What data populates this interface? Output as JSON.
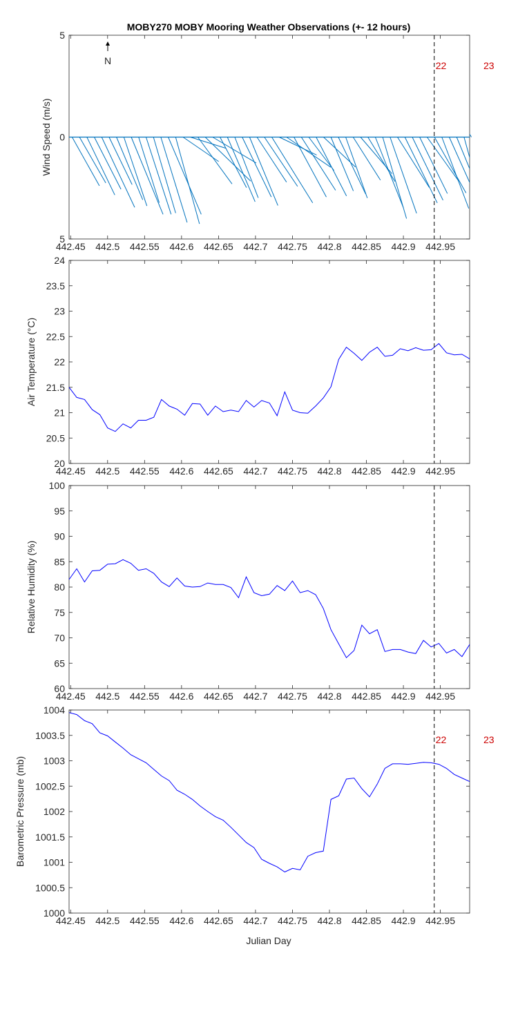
{
  "title": "MOBY270 MOBY Mooring Weather Observations (+- 12 hours)",
  "colors": {
    "line": "#0000ff",
    "stick": "#0072bd",
    "axis": "#262626",
    "day_label": "#cc0000",
    "marker": "#000000"
  },
  "north_arrow_label": "N",
  "xlabel": "Julian Day",
  "day_marker_x": 442.9417,
  "day_labels": [
    "22",
    "23"
  ],
  "chart_data": [
    {
      "type": "line",
      "panel": "wind",
      "ylabel": "Wind Speed (m/s)",
      "xlim": [
        442.4479,
        442.9896
      ],
      "ylim": [
        -5,
        5
      ],
      "yticks": [
        -5,
        0,
        5
      ],
      "ytick_labels": [
        "5",
        "0",
        "5"
      ],
      "xticks": [
        442.45,
        442.5,
        442.55,
        442.6,
        442.65,
        442.7,
        442.75,
        442.8,
        442.85,
        442.9,
        442.95
      ],
      "xtick_labels": [
        "442.45",
        "442.5",
        "442.55",
        "442.6",
        "442.65",
        "442.7",
        "442.75",
        "442.8",
        "442.85",
        "442.9",
        "442.95"
      ],
      "sticks_u": [
        0,
        0,
        0,
        0,
        0,
        0,
        0,
        0,
        0,
        0,
        0,
        0,
        0,
        0,
        0,
        0,
        0,
        0,
        0,
        0,
        0,
        0,
        0,
        0,
        0,
        0,
        0,
        0,
        0,
        0,
        0,
        0,
        0,
        0,
        0,
        0,
        0,
        0,
        0,
        0,
        0,
        0,
        0,
        0,
        0,
        0,
        0,
        0,
        0,
        0,
        0,
        0,
        0,
        0,
        0
      ],
      "sticks": [
        {
          "x": 442.452,
          "u": 1.34,
          "v": -2.39
        },
        {
          "x": 442.462,
          "u": 1.29,
          "v": -2.25
        },
        {
          "x": 442.472,
          "u": 1.37,
          "v": -2.84
        },
        {
          "x": 442.482,
          "u": 1.31,
          "v": -2.56
        },
        {
          "x": 442.492,
          "u": 1.62,
          "v": -3.45
        },
        {
          "x": 442.502,
          "u": 1.13,
          "v": -2.33
        },
        {
          "x": 442.512,
          "u": 1.29,
          "v": -3.08
        },
        {
          "x": 442.522,
          "u": 1.13,
          "v": -3.38
        },
        {
          "x": 442.532,
          "u": 1.56,
          "v": -3.79
        },
        {
          "x": 442.542,
          "u": 1.01,
          "v": -3.22
        },
        {
          "x": 442.552,
          "u": 1.23,
          "v": -3.79
        },
        {
          "x": 442.562,
          "u": 1.09,
          "v": -3.73
        },
        {
          "x": 442.572,
          "u": 1.29,
          "v": -4.19
        },
        {
          "x": 442.582,
          "u": 1.62,
          "v": -3.79
        },
        {
          "x": 442.592,
          "u": 1.17,
          "v": -4.26
        },
        {
          "x": 442.602,
          "u": 1.75,
          "v": -1.2
        },
        {
          "x": 442.612,
          "u": 1.75,
          "v": -0.55
        },
        {
          "x": 442.622,
          "u": 1.68,
          "v": -2.3
        },
        {
          "x": 442.632,
          "u": 2.23,
          "v": -2.16
        },
        {
          "x": 442.642,
          "u": 2.14,
          "v": -1.27
        },
        {
          "x": 442.652,
          "u": 1.3,
          "v": -2.48
        },
        {
          "x": 442.662,
          "u": 1.36,
          "v": -3.17
        },
        {
          "x": 442.672,
          "u": 1.15,
          "v": -2.98
        },
        {
          "x": 442.682,
          "u": 1.43,
          "v": -2.94
        },
        {
          "x": 442.692,
          "u": 1.39,
          "v": -3.36
        },
        {
          "x": 442.702,
          "u": 1.45,
          "v": -2.21
        },
        {
          "x": 442.712,
          "u": 1.63,
          "v": -2.42
        },
        {
          "x": 442.722,
          "u": 2.01,
          "v": -3.23
        },
        {
          "x": 442.732,
          "u": 1.84,
          "v": -0.88
        },
        {
          "x": 442.742,
          "u": 2.17,
          "v": -1.48
        },
        {
          "x": 442.752,
          "u": 1.59,
          "v": -2.94
        },
        {
          "x": 442.762,
          "u": 1.68,
          "v": -2.61
        },
        {
          "x": 442.772,
          "u": 1.24,
          "v": -1.64
        },
        {
          "x": 442.782,
          "u": 1.49,
          "v": -2.89
        },
        {
          "x": 442.792,
          "u": 1.57,
          "v": -1.47
        },
        {
          "x": 442.802,
          "u": 1.1,
          "v": -2.64
        },
        {
          "x": 442.812,
          "u": 1.34,
          "v": -2.79
        },
        {
          "x": 442.822,
          "u": 1.06,
          "v": -2.99
        },
        {
          "x": 442.832,
          "u": 1.34,
          "v": -2.11
        },
        {
          "x": 442.842,
          "u": 1.55,
          "v": -1.8
        },
        {
          "x": 442.852,
          "u": 1.33,
          "v": -2.18
        },
        {
          "x": 442.862,
          "u": 1.38,
          "v": -3.47
        },
        {
          "x": 442.872,
          "u": 1.17,
          "v": -4.0
        },
        {
          "x": 442.882,
          "u": 1.3,
          "v": -3.74
        },
        {
          "x": 442.892,
          "u": 1.56,
          "v": -2.47
        },
        {
          "x": 442.902,
          "u": 1.59,
          "v": -3.23
        },
        {
          "x": 442.912,
          "u": 1.51,
          "v": -3.1
        },
        {
          "x": 442.922,
          "u": 1.36,
          "v": -2.77
        },
        {
          "x": 442.932,
          "u": 1.56,
          "v": -2.17
        },
        {
          "x": 442.942,
          "u": 1.55,
          "v": -2.74
        },
        {
          "x": 442.952,
          "u": 1.32,
          "v": -3.5
        },
        {
          "x": 442.962,
          "u": 1.66,
          "v": -3.69
        },
        {
          "x": 442.972,
          "u": 1.04,
          "v": -2.52
        },
        {
          "x": 442.982,
          "u": 1.03,
          "v": -3.74
        },
        {
          "x": 442.992,
          "u": 0.4,
          "v": -0.65
        }
      ]
    },
    {
      "type": "line",
      "panel": "air_temperature",
      "ylabel": "Air Temperature (°C)",
      "xlim": [
        442.4479,
        442.9896
      ],
      "ylim": [
        20,
        24
      ],
      "yticks": [
        20,
        20.5,
        21,
        21.5,
        22,
        22.5,
        23,
        23.5,
        24
      ],
      "ytick_labels": [
        "20",
        "20.5",
        "21",
        "21.5",
        "22",
        "22.5",
        "23",
        "23.5",
        "24"
      ],
      "xticks": [
        442.45,
        442.5,
        442.55,
        442.6,
        442.65,
        442.7,
        442.75,
        442.8,
        442.85,
        442.9,
        442.95
      ],
      "xtick_labels": [
        "442.45",
        "442.5",
        "442.55",
        "442.6",
        "442.65",
        "442.7",
        "442.75",
        "442.8",
        "442.85",
        "442.9",
        "442.95"
      ],
      "x": [
        442.4479,
        442.4583,
        442.4688,
        442.4792,
        442.4896,
        442.5,
        442.5104,
        442.5208,
        442.5313,
        442.5417,
        442.5521,
        442.5625,
        442.5729,
        442.5833,
        442.5938,
        442.6042,
        442.6146,
        442.625,
        442.6354,
        442.6458,
        442.6563,
        442.6667,
        442.6771,
        442.6875,
        442.6979,
        442.7083,
        442.7188,
        442.7292,
        442.7396,
        442.75,
        442.7604,
        442.7708,
        442.7813,
        442.7917,
        442.8021,
        442.8125,
        442.8229,
        442.8333,
        442.8438,
        442.8542,
        442.8646,
        442.875,
        442.8854,
        442.8958,
        442.9063,
        442.9167,
        442.9271,
        442.9375,
        442.9479,
        442.9583,
        442.9688,
        442.9792,
        442.9896
      ],
      "y": [
        21.5,
        21.3,
        21.26,
        21.06,
        20.96,
        20.7,
        20.63,
        20.78,
        20.7,
        20.85,
        20.85,
        20.91,
        21.26,
        21.13,
        21.07,
        20.95,
        21.18,
        21.17,
        20.95,
        21.13,
        21.02,
        21.05,
        21.02,
        21.24,
        21.11,
        21.24,
        21.19,
        20.94,
        21.41,
        21.05,
        21.0,
        20.99,
        21.13,
        21.29,
        21.51,
        22.05,
        22.29,
        22.17,
        22.03,
        22.19,
        22.29,
        22.11,
        22.13,
        22.26,
        22.22,
        22.28,
        22.23,
        22.24,
        22.36,
        22.18,
        22.14,
        22.15,
        22.06
      ]
    },
    {
      "type": "line",
      "panel": "relative_humidity",
      "ylabel": "Relative Humidity (%)",
      "xlim": [
        442.4479,
        442.9896
      ],
      "ylim": [
        60,
        100
      ],
      "yticks": [
        60,
        65,
        70,
        75,
        80,
        85,
        90,
        95,
        100
      ],
      "ytick_labels": [
        "60",
        "65",
        "70",
        "75",
        "80",
        "85",
        "90",
        "95",
        "100"
      ],
      "xticks": [
        442.45,
        442.5,
        442.55,
        442.6,
        442.65,
        442.7,
        442.75,
        442.8,
        442.85,
        442.9,
        442.95
      ],
      "xtick_labels": [
        "442.45",
        "442.5",
        "442.55",
        "442.6",
        "442.65",
        "442.7",
        "442.75",
        "442.8",
        "442.85",
        "442.9",
        "442.95"
      ],
      "x": [
        442.4479,
        442.4583,
        442.4688,
        442.4792,
        442.4896,
        442.5,
        442.5104,
        442.5208,
        442.5313,
        442.5417,
        442.5521,
        442.5625,
        442.5729,
        442.5833,
        442.5938,
        442.6042,
        442.6146,
        442.625,
        442.6354,
        442.6458,
        442.6563,
        442.6667,
        442.6771,
        442.6875,
        442.6979,
        442.7083,
        442.7188,
        442.7292,
        442.7396,
        442.75,
        442.7604,
        442.7708,
        442.7813,
        442.7917,
        442.8021,
        442.8125,
        442.8229,
        442.8333,
        442.8438,
        442.8542,
        442.8646,
        442.875,
        442.8854,
        442.8958,
        442.9063,
        442.9167,
        442.9271,
        442.9375,
        442.9479,
        442.9583,
        442.9688,
        442.9792,
        442.9896
      ],
      "y": [
        81.5,
        83.6,
        81.0,
        83.2,
        83.3,
        84.5,
        84.6,
        85.4,
        84.7,
        83.3,
        83.6,
        82.7,
        81.0,
        80.1,
        81.8,
        80.2,
        80.0,
        80.1,
        80.8,
        80.5,
        80.5,
        79.9,
        77.9,
        82.0,
        78.9,
        78.3,
        78.6,
        80.3,
        79.3,
        81.2,
        78.9,
        79.3,
        78.5,
        75.8,
        71.6,
        68.8,
        66.1,
        67.5,
        72.5,
        70.8,
        71.6,
        67.3,
        67.7,
        67.7,
        67.2,
        66.9,
        69.5,
        68.2,
        68.9,
        67.0,
        67.7,
        66.3,
        68.7
      ]
    },
    {
      "type": "line",
      "panel": "barometric_pressure",
      "ylabel": "Barometric Pressure (mb)",
      "xlim": [
        442.4479,
        442.9896
      ],
      "ylim": [
        1000,
        1004
      ],
      "yticks": [
        1000,
        1000.5,
        1001,
        1001.5,
        1002,
        1002.5,
        1003,
        1003.5,
        1004
      ],
      "ytick_labels": [
        "1000",
        "1000.5",
        "1001",
        "1001.5",
        "1002",
        "1002.5",
        "1003",
        "1003.5",
        "1004"
      ],
      "xticks": [
        442.45,
        442.5,
        442.55,
        442.6,
        442.65,
        442.7,
        442.75,
        442.8,
        442.85,
        442.9,
        442.95
      ],
      "xtick_labels": [
        "442.45",
        "442.5",
        "442.55",
        "442.6",
        "442.65",
        "442.7",
        "442.75",
        "442.8",
        "442.85",
        "442.9",
        "442.95"
      ],
      "x": [
        442.4479,
        442.4583,
        442.4688,
        442.4792,
        442.4896,
        442.5,
        442.5104,
        442.5208,
        442.5313,
        442.5417,
        442.5521,
        442.5625,
        442.5729,
        442.5833,
        442.5938,
        442.6042,
        442.6146,
        442.625,
        442.6354,
        442.6458,
        442.6563,
        442.6667,
        442.6771,
        442.6875,
        442.6979,
        442.7083,
        442.7188,
        442.7292,
        442.7396,
        442.75,
        442.7604,
        442.7708,
        442.7813,
        442.7917,
        442.8021,
        442.8125,
        442.8229,
        442.8333,
        442.8438,
        442.8542,
        442.8646,
        442.875,
        442.8854,
        442.8958,
        442.9063,
        442.9167,
        442.9271,
        442.9375,
        442.9479,
        442.9583,
        442.9688,
        442.9792,
        442.9896
      ],
      "y": [
        1003.95,
        1003.91,
        1003.79,
        1003.73,
        1003.55,
        1003.49,
        1003.37,
        1003.25,
        1003.12,
        1003.04,
        1002.96,
        1002.83,
        1002.7,
        1002.61,
        1002.42,
        1002.34,
        1002.24,
        1002.11,
        1002.0,
        1001.9,
        1001.83,
        1001.69,
        1001.54,
        1001.39,
        1001.29,
        1001.06,
        1000.98,
        1000.91,
        1000.81,
        1000.88,
        1000.85,
        1001.12,
        1001.19,
        1001.22,
        1002.24,
        1002.31,
        1002.64,
        1002.66,
        1002.45,
        1002.29,
        1002.54,
        1002.85,
        1002.94,
        1002.94,
        1002.93,
        1002.95,
        1002.97,
        1002.96,
        1002.93,
        1002.85,
        1002.73,
        1002.66,
        1002.59
      ]
    }
  ]
}
